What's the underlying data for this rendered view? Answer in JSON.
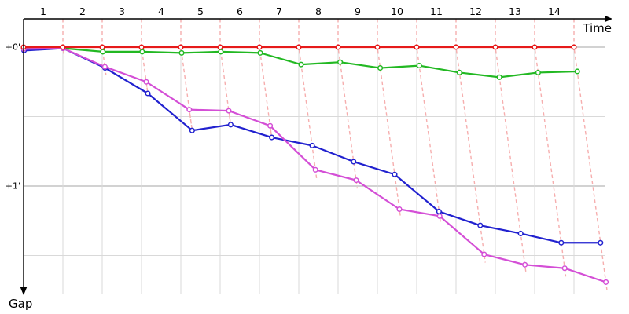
{
  "axes": {
    "x_label": "Time",
    "y_label": "Gap",
    "y_tick_labels": [
      "+0'",
      "+1'"
    ]
  },
  "chart_data": {
    "type": "line",
    "x_label": "Time",
    "y_label": "Gap",
    "x_tick_labels": [
      "1",
      "2",
      "3",
      "4",
      "5",
      "6",
      "7",
      "8",
      "9",
      "10",
      "11",
      "12",
      "13",
      "14"
    ],
    "y_tick_labels": [
      "+0'",
      "+1'"
    ],
    "y_tick_values_seconds": [
      0,
      60
    ],
    "y_unit": "gap to leader (minutes:seconds), increasing downward",
    "x_unit": "time / lap markers 1-14",
    "laps": [
      0,
      1,
      2,
      3,
      4,
      5,
      6,
      7,
      8,
      9,
      10,
      11,
      12,
      13,
      14
    ],
    "series": [
      {
        "name": "red",
        "color": "#e61a1a",
        "gap_seconds": [
          0,
          0,
          0,
          0,
          0,
          0,
          0,
          0,
          0,
          0,
          0,
          0,
          0,
          0,
          0
        ]
      },
      {
        "name": "green",
        "color": "#22b822",
        "gap_seconds": [
          0.5,
          0.5,
          2,
          2,
          2.5,
          2,
          2.5,
          7.5,
          6.5,
          9,
          8,
          11,
          13,
          11,
          10.5
        ]
      },
      {
        "name": "blue",
        "color": "#2121cf",
        "gap_seconds": [
          1.5,
          0.5,
          9,
          20,
          36,
          33.5,
          39,
          42.5,
          49.5,
          55,
          71,
          77,
          80.5,
          84.5,
          84.5
        ]
      },
      {
        "name": "magenta",
        "color": "#d44fd6",
        "gap_seconds": [
          0.8,
          0.5,
          8.5,
          15,
          27,
          27.5,
          34,
          53,
          57.5,
          70,
          73,
          89.5,
          94,
          95.5,
          101.5
        ]
      }
    ],
    "connectors": {
      "description": "dashed lap-marker lines from time axis through each rider's lap point",
      "color": "#f6aeae",
      "style": "dashed"
    },
    "grid": {
      "light": "#d9d9d9",
      "medium": "#a6a6a6",
      "horizontal_lines_seconds": [
        0,
        30,
        60,
        90
      ],
      "vertical_lines_at_laps": [
        1,
        2,
        3,
        4,
        5,
        6,
        7,
        8,
        9,
        10,
        11,
        12,
        13,
        14
      ]
    },
    "legend_position": "none",
    "title": ""
  }
}
